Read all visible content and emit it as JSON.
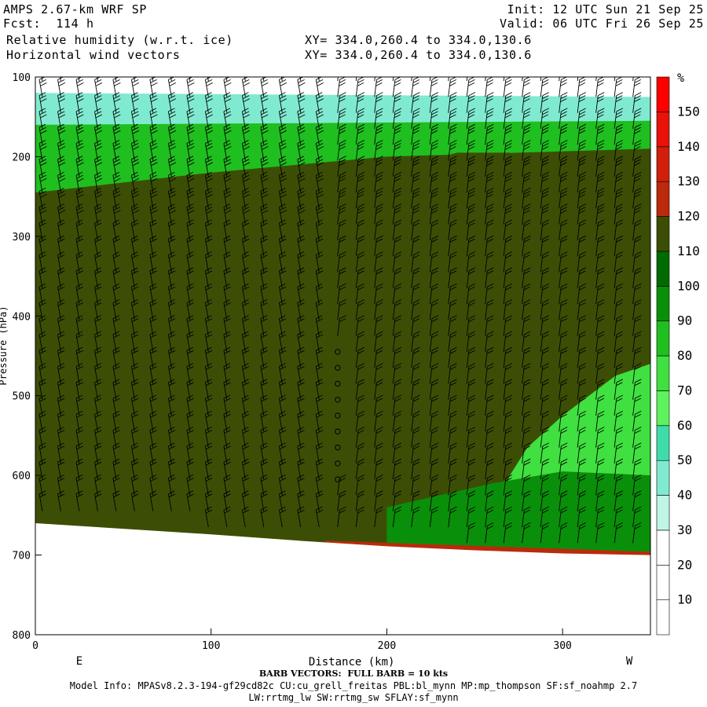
{
  "header": {
    "model": "AMPS 2.67-km WRF SP",
    "forecast": "Fcst:  114 h",
    "field1": "Relative humidity (w.r.t. ice)",
    "field2": "Horizontal wind vectors",
    "xy1": "XY= 334.0,260.4 to 334.0,130.6",
    "xy2": "XY= 334.0,260.4 to 334.0,130.6",
    "init": "Init: 12 UTC Sun 21 Sep 25",
    "valid": "Valid: 06 UTC Fri 26 Sep 25"
  },
  "footer": {
    "barb_note": "BARB VECTORS:  FULL BARB = 10 kts",
    "model_info": "Model Info: MPASv8.2.3-194-gf29cd82c CU:cu_grell_freitas PBL:bl_mynn MP:mp_thompson SF:sf_noahmp 2.7",
    "model_info2": "LW:rrtmg_lw SW:rrtmg_sw SFLAY:sf_mynn"
  },
  "chart_data": {
    "type": "heatmap",
    "xlabel": "Distance (km)",
    "ylabel": "Pressure (hPa)",
    "xlim": [
      0,
      350
    ],
    "ylim": [
      800,
      100
    ],
    "x_ticks": [
      0,
      100,
      200,
      300
    ],
    "y_ticks": [
      100,
      200,
      300,
      400,
      500,
      600,
      700,
      800
    ],
    "x_end_labels": {
      "left": "E",
      "right": "W"
    },
    "colorbar": {
      "unit": "%",
      "levels": [
        10,
        20,
        30,
        40,
        50,
        60,
        70,
        80,
        90,
        100,
        110,
        120,
        130,
        140,
        150
      ],
      "label_levels": [
        "10",
        "20",
        "30",
        "40",
        "50",
        "60",
        "70",
        "80",
        "90",
        "100",
        "110",
        "120",
        "130",
        "140",
        "150"
      ],
      "colors": [
        "#ffffff",
        "#ffffff",
        "#ffffff",
        "#bff5e6",
        "#80ead0",
        "#3fdcab",
        "#5ef25e",
        "#3fe03f",
        "#1fbf1f",
        "#0a8f0a",
        "#006b00",
        "#3c4e05",
        "#bb2a0a",
        "#d11f0a",
        "#e81208",
        "#ff0000"
      ]
    },
    "surface_pressure": [
      [
        0,
        660
      ],
      [
        50,
        667
      ],
      [
        100,
        674
      ],
      [
        150,
        682
      ],
      [
        200,
        689
      ],
      [
        250,
        694
      ],
      [
        300,
        698
      ],
      [
        350,
        700
      ]
    ],
    "regions": [
      {
        "rh": 25,
        "desc": "dry top layer",
        "poly": [
          [
            0,
            100
          ],
          [
            350,
            100
          ],
          [
            350,
            150
          ],
          [
            0,
            150
          ]
        ]
      },
      {
        "rh": 45,
        "poly": [
          [
            0,
            120
          ],
          [
            350,
            125
          ],
          [
            350,
            160
          ],
          [
            200,
            165
          ],
          [
            0,
            165
          ]
        ]
      },
      {
        "rh": 80,
        "poly": [
          [
            0,
            160
          ],
          [
            350,
            155
          ],
          [
            350,
            190
          ],
          [
            200,
            200
          ],
          [
            100,
            220
          ],
          [
            0,
            245
          ]
        ]
      },
      {
        "rh": 115,
        "poly": [
          [
            0,
            280
          ],
          [
            30,
            265
          ],
          [
            70,
            250
          ],
          [
            130,
            235
          ],
          [
            145,
            240
          ],
          [
            120,
            255
          ],
          [
            80,
            275
          ],
          [
            50,
            300
          ],
          [
            0,
            325
          ]
        ]
      },
      {
        "rh": 115,
        "poly": [
          [
            150,
            335
          ],
          [
            165,
            310
          ],
          [
            200,
            290
          ],
          [
            240,
            260
          ],
          [
            270,
            255
          ],
          [
            290,
            275
          ],
          [
            270,
            305
          ],
          [
            240,
            325
          ],
          [
            215,
            335
          ],
          [
            185,
            345
          ],
          [
            160,
            350
          ]
        ]
      },
      {
        "rh": 115,
        "poly": [
          [
            215,
            210
          ],
          [
            240,
            195
          ],
          [
            270,
            195
          ],
          [
            285,
            205
          ],
          [
            270,
            225
          ],
          [
            235,
            230
          ]
        ]
      },
      {
        "rh": 115,
        "poly": [
          [
            0,
            405
          ],
          [
            15,
            400
          ],
          [
            20,
            420
          ],
          [
            0,
            428
          ]
        ]
      },
      {
        "rh": 115,
        "poly": [
          [
            55,
            360
          ],
          [
            65,
            345
          ],
          [
            85,
            345
          ],
          [
            85,
            365
          ],
          [
            65,
            375
          ],
          [
            60,
            380
          ]
        ]
      },
      {
        "rh": 115,
        "poly": [
          [
            120,
            345
          ],
          [
            130,
            338
          ],
          [
            135,
            352
          ],
          [
            125,
            360
          ]
        ]
      },
      {
        "rh": 115,
        "poly": [
          [
            165,
            227
          ],
          [
            180,
            228
          ],
          [
            175,
            236
          ]
        ]
      },
      {
        "rh": 75,
        "poly": [
          [
            270,
            600
          ],
          [
            280,
            565
          ],
          [
            300,
            525
          ],
          [
            330,
            475
          ],
          [
            350,
            460
          ],
          [
            350,
            700
          ],
          [
            280,
            695
          ],
          [
            260,
            660
          ]
        ]
      },
      {
        "rh": 95,
        "poly": [
          [
            200,
            640
          ],
          [
            260,
            610
          ],
          [
            300,
            595
          ],
          [
            350,
            600
          ],
          [
            350,
            700
          ],
          [
            200,
            690
          ]
        ]
      },
      {
        "rh": 125,
        "desc": "surface red band",
        "poly": [
          [
            165,
            682
          ],
          [
            350,
            696
          ],
          [
            350,
            702
          ],
          [
            165,
            690
          ]
        ]
      }
    ]
  }
}
